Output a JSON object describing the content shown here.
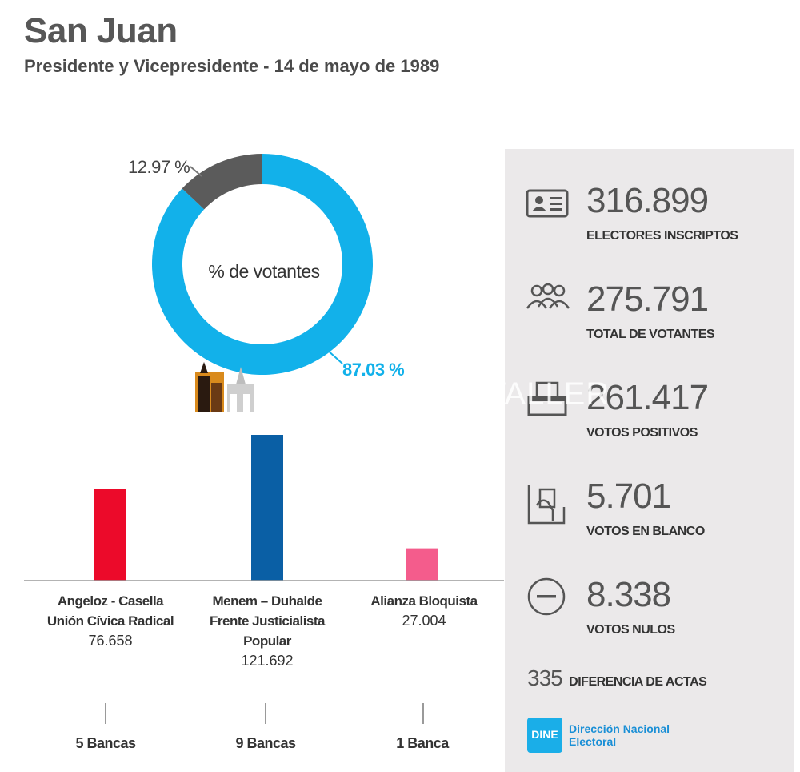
{
  "header": {
    "title": "San Juan",
    "subtitle": "Presidente y Vicepresidente - 14 de mayo de 1989"
  },
  "watermark": {
    "text": "TALLER"
  },
  "chart_data": [
    {
      "type": "pie",
      "center_label": "% de votantes",
      "slices": [
        {
          "label": "87.03 %",
          "value": 87.03,
          "color": "#12b1ea"
        },
        {
          "label": "12.97 %",
          "value": 12.97,
          "color": "#5b5b5b"
        }
      ]
    },
    {
      "type": "bar",
      "categories": [
        "Angeloz - Casella",
        "Menem – Duhalde",
        "Alianza Bloquista"
      ],
      "parties": [
        "Unión Cívica Radical",
        "Frente Justicialista Popular",
        ""
      ],
      "values": [
        76658,
        121692,
        27004
      ],
      "value_labels": [
        "76.658",
        "121.692",
        "27.004"
      ],
      "colors": [
        "#ec0a2a",
        "#0a5fa5",
        "#f45c8c"
      ],
      "seats": [
        "5 Bancas",
        "9 Bancas",
        "1 Banca"
      ]
    }
  ],
  "stats": [
    {
      "icon": "id-card-icon",
      "value": "316.899",
      "label": "ELECTORES INSCRIPTOS"
    },
    {
      "icon": "people-icon",
      "value": "275.791",
      "label": "TOTAL DE VOTANTES"
    },
    {
      "icon": "ballot-box-icon",
      "value": "261.417",
      "label": "VOTOS POSITIVOS"
    },
    {
      "icon": "hand-ballot-icon",
      "value": "5.701",
      "label": "VOTOS EN BLANCO"
    },
    {
      "icon": "minus-circle-icon",
      "value": "8.338",
      "label": "VOTOS NULOS"
    }
  ],
  "difference": {
    "value": "335",
    "label": "DIFERENCIA DE ACTAS"
  },
  "logo": {
    "abbr": "DINE",
    "line1": "Dirección Nacional",
    "line2": "Electoral"
  }
}
